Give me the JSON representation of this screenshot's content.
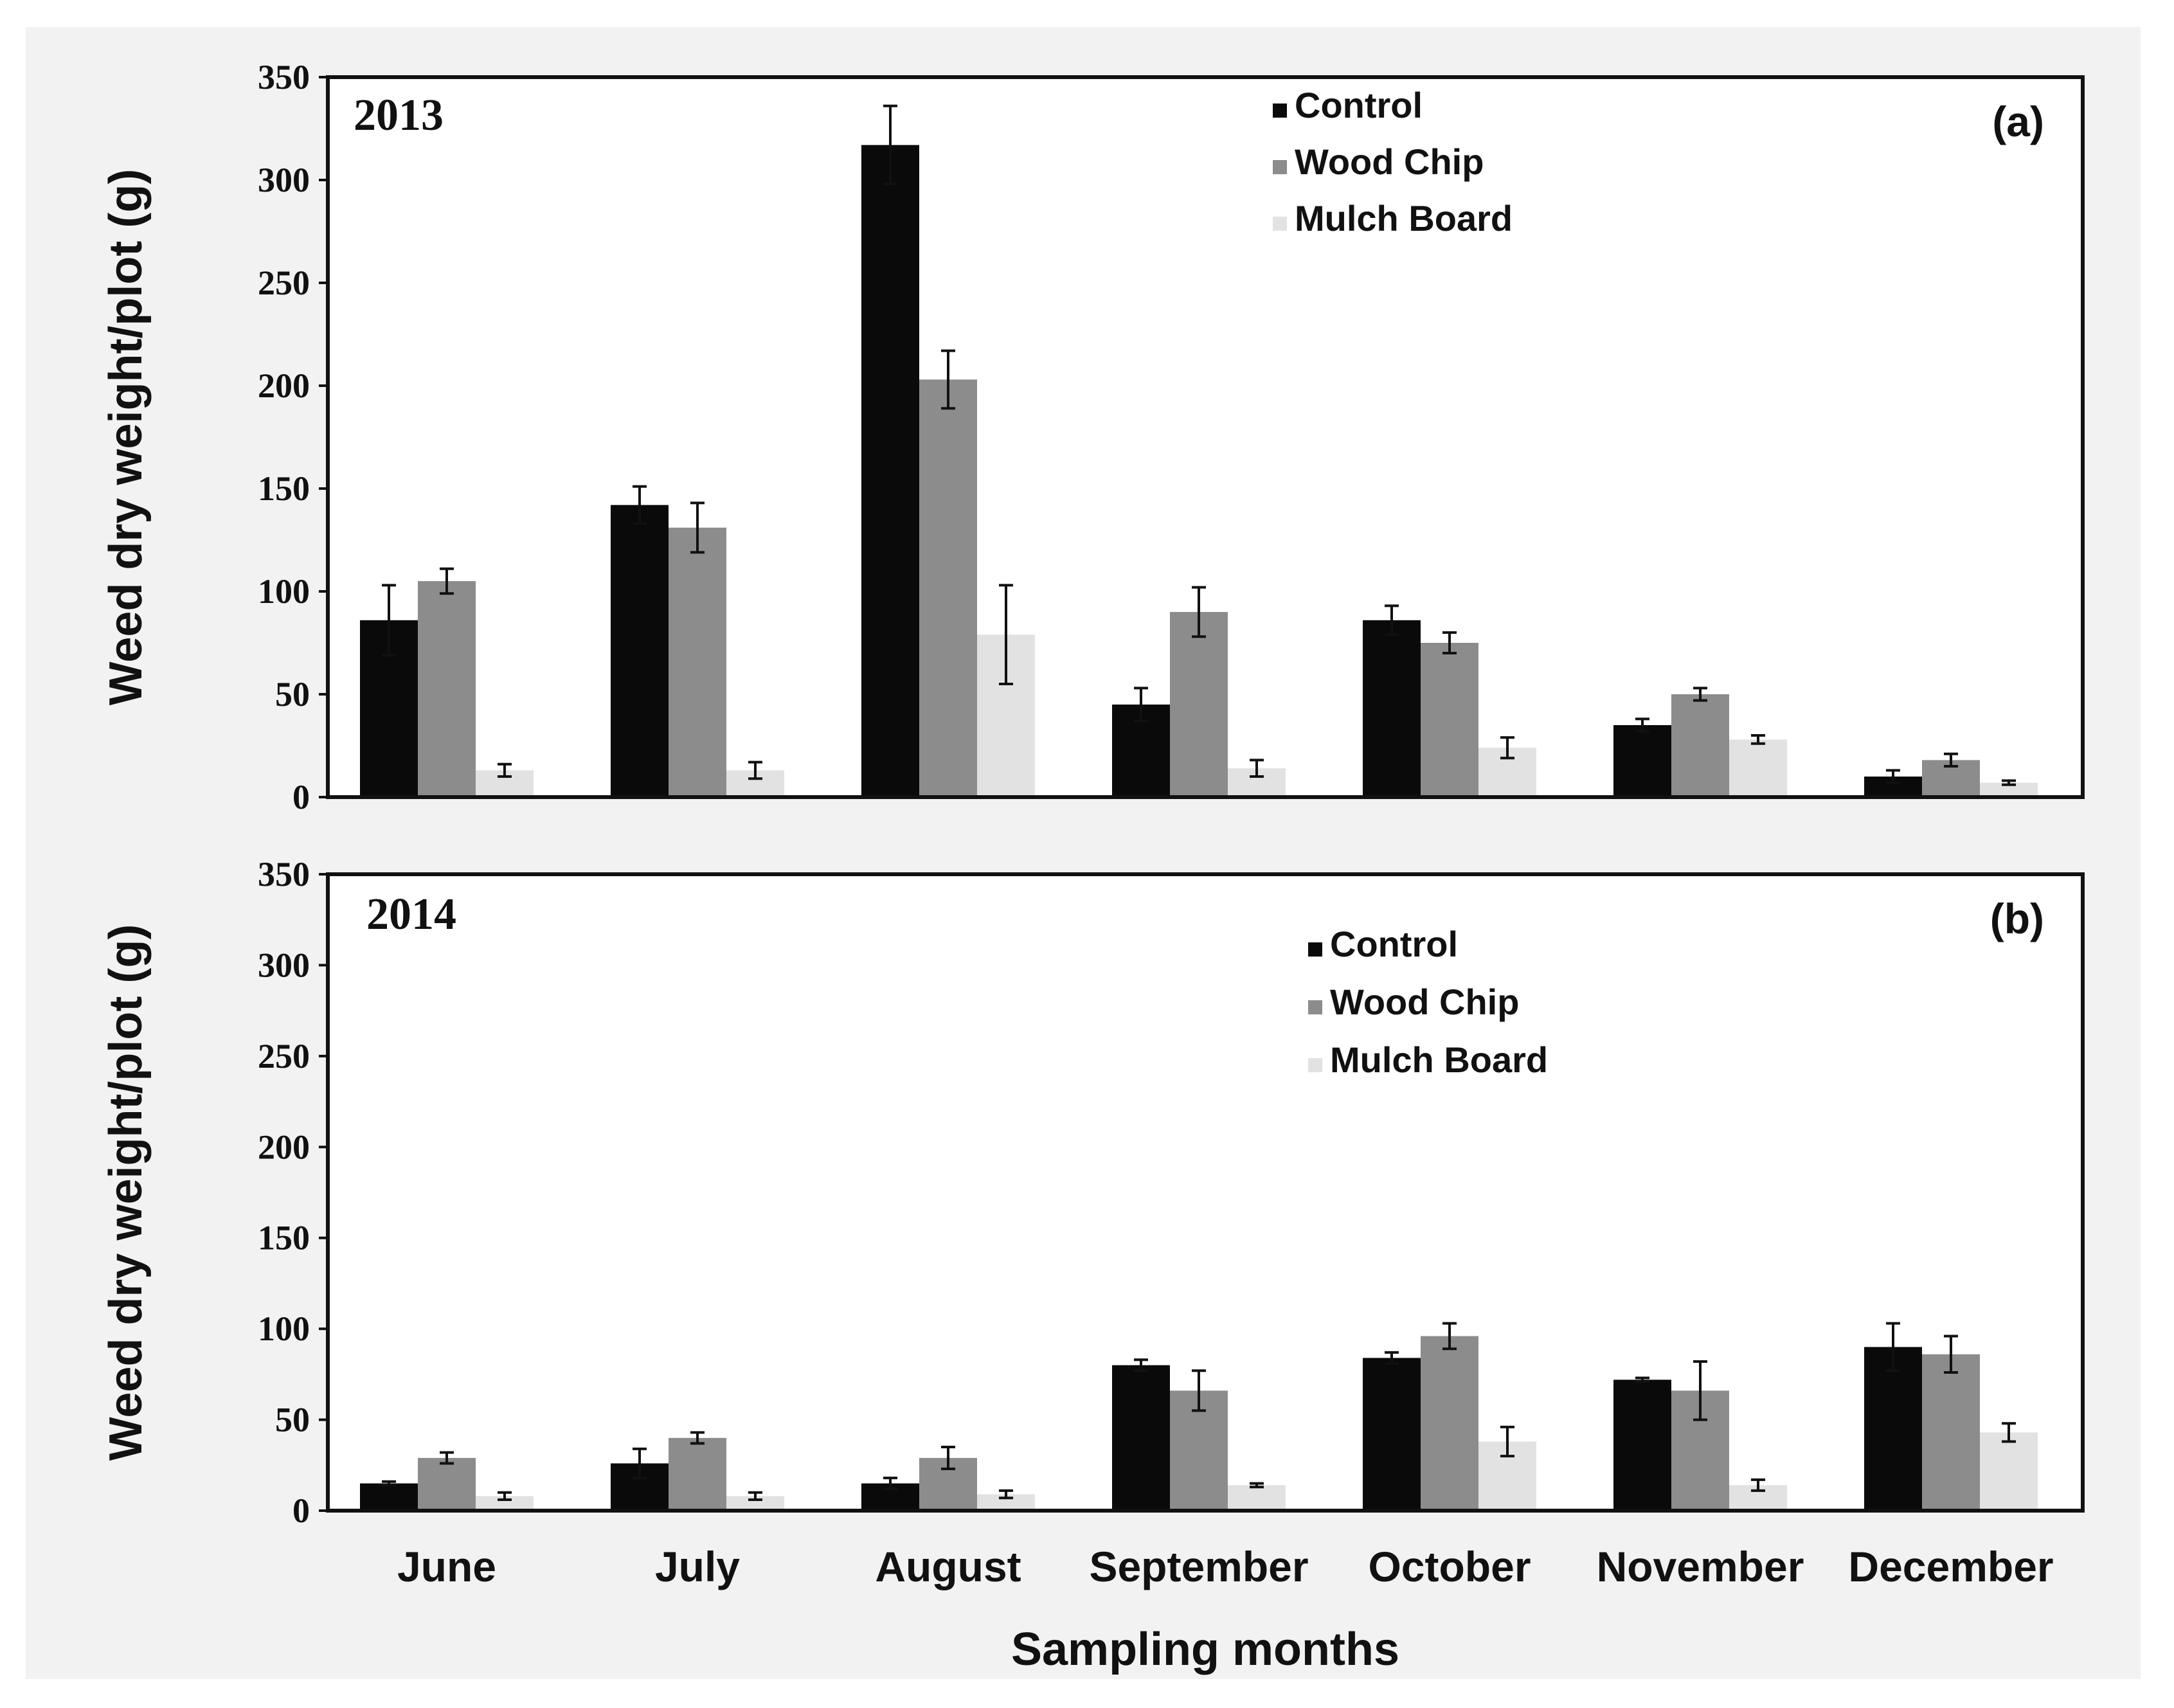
{
  "figure": {
    "xlabel": "Sampling months",
    "ylabel": "Weed dry weight/plot (g)"
  },
  "colors": {
    "Control": "#0a0a0a",
    "Wood Chip": "#8c8c8c",
    "Mulch Board": "#e2e2e2"
  },
  "chart_data": [
    {
      "type": "bar",
      "panel_label": "(a)",
      "year_label": "2013",
      "ylabel": "Weed dry weight/plot (g)",
      "xlabel": "Sampling months",
      "ylim": [
        0,
        350
      ],
      "yticks": [
        0,
        50,
        100,
        150,
        200,
        250,
        300,
        350
      ],
      "legend_position": "top-center",
      "categories": [
        "June",
        "July",
        "August",
        "September",
        "October",
        "November",
        "December"
      ],
      "series": [
        {
          "name": "Control",
          "values": [
            86,
            142,
            317,
            45,
            86,
            35,
            10
          ],
          "errors": [
            17,
            9,
            19,
            8,
            7,
            3,
            3
          ]
        },
        {
          "name": "Wood Chip",
          "values": [
            105,
            131,
            203,
            90,
            75,
            50,
            18
          ],
          "errors": [
            6,
            12,
            14,
            12,
            5,
            3,
            3
          ]
        },
        {
          "name": "Mulch Board",
          "values": [
            13,
            13,
            79,
            14,
            24,
            28,
            7
          ],
          "errors": [
            3,
            4,
            24,
            4,
            5,
            2,
            1
          ]
        }
      ]
    },
    {
      "type": "bar",
      "panel_label": "(b)",
      "year_label": "2014",
      "ylabel": "Weed dry weight/plot (g)",
      "xlabel": "Sampling months",
      "ylim": [
        0,
        350
      ],
      "yticks": [
        0,
        50,
        100,
        150,
        200,
        250,
        300,
        350
      ],
      "legend_position": "top-center",
      "categories": [
        "June",
        "July",
        "August",
        "September",
        "October",
        "November",
        "December"
      ],
      "series": [
        {
          "name": "Control",
          "values": [
            15,
            26,
            15,
            80,
            84,
            72,
            90
          ],
          "errors": [
            1,
            8,
            3,
            3,
            3,
            1,
            13
          ]
        },
        {
          "name": "Wood Chip",
          "values": [
            29,
            40,
            29,
            66,
            96,
            66,
            86
          ],
          "errors": [
            3,
            3,
            6,
            11,
            7,
            16,
            10
          ]
        },
        {
          "name": "Mulch Board",
          "values": [
            8,
            8,
            9,
            14,
            38,
            14,
            43
          ],
          "errors": [
            2,
            2,
            2,
            1,
            8,
            3,
            5
          ]
        }
      ]
    }
  ]
}
